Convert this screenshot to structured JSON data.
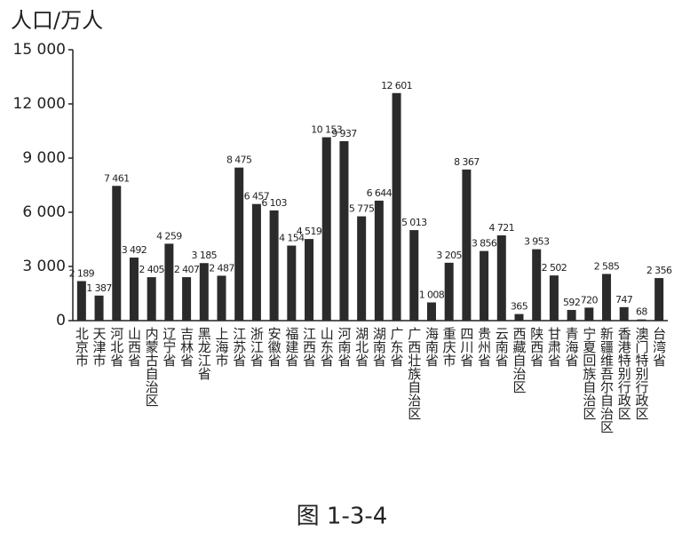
{
  "chart_data": {
    "type": "bar",
    "title": "人口/万人",
    "caption": "图 1-3-4",
    "categories": [
      "北京市",
      "天津市",
      "河北省",
      "山西省",
      "内蒙古自治区",
      "辽宁省",
      "吉林省",
      "黑龙江省",
      "上海市",
      "江苏省",
      "浙江省",
      "安徽省",
      "福建省",
      "江西省",
      "山东省",
      "河南省",
      "湖北省",
      "湖南省",
      "广东省",
      "广西壮族自治区",
      "海南省",
      "重庆市",
      "四川省",
      "贵州省",
      "云南省",
      "西藏自治区",
      "陕西省",
      "甘肃省",
      "青海省",
      "宁夏回族自治区",
      "新疆维吾尔自治区",
      "香港特别行政区",
      "澳门特别行政区",
      "台湾省"
    ],
    "values": [
      2189,
      1387,
      7461,
      3492,
      2405,
      4259,
      2407,
      3185,
      2487,
      8475,
      6457,
      6103,
      4154,
      4519,
      10153,
      9937,
      5775,
      6644,
      12601,
      5013,
      1008,
      3205,
      8367,
      3856,
      4721,
      365,
      3953,
      2502,
      592,
      720,
      2585,
      747,
      68,
      2356
    ],
    "value_labels": [
      "2 189",
      "1 387",
      "7 461",
      "3 492",
      "2 405",
      "4 259",
      "2 407",
      "3 185",
      "2 487",
      "8 475",
      "6 457",
      "6 103",
      "4 154",
      "4 519",
      "10 153",
      "9 937",
      "5 775",
      "6 644",
      "12 601",
      "5 013",
      "1 008",
      "3 205",
      "8 367",
      "3 856",
      "4 721",
      "365",
      "3 953",
      "2 502",
      "592",
      "720",
      "2 585",
      "747",
      "68",
      "2 356"
    ],
    "color": "#2b2b2b",
    "ylim": [
      0,
      15000
    ],
    "yticks": [
      0,
      {
        "value": 3000,
        "label": "3 000"
      },
      {
        "value": 6000,
        "label": "6 000"
      },
      {
        "value": 9000,
        "label": "9 000"
      },
      {
        "value": 12000,
        "label": "12 000"
      },
      {
        "value": 15000,
        "label": "15 000"
      }
    ],
    "grid": false
  }
}
